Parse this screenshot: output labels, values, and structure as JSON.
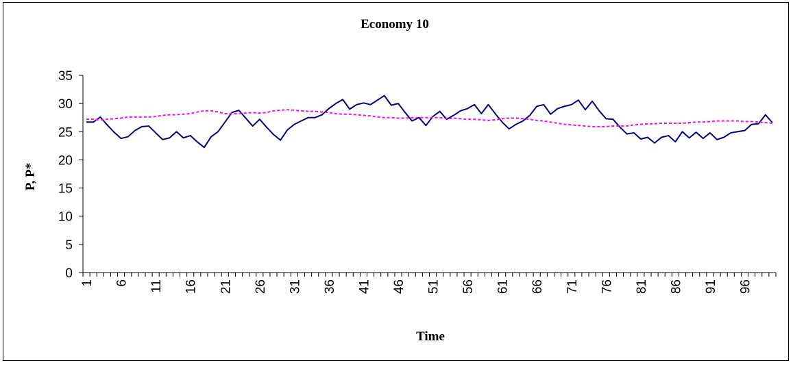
{
  "chart_data": {
    "type": "line",
    "title": "Economy 10",
    "xlabel": "Time",
    "ylabel": "P, P*",
    "ylim": [
      0,
      35
    ],
    "yticks": [
      0,
      5,
      10,
      15,
      20,
      25,
      30,
      35
    ],
    "xticks": [
      "1",
      "6",
      "11",
      "16",
      "21",
      "26",
      "31",
      "36",
      "41",
      "46",
      "51",
      "56",
      "61",
      "66",
      "71",
      "76",
      "81",
      "86",
      "91",
      "96"
    ],
    "x": [
      1,
      2,
      3,
      4,
      5,
      6,
      7,
      8,
      9,
      10,
      11,
      12,
      13,
      14,
      15,
      16,
      17,
      18,
      19,
      20,
      21,
      22,
      23,
      24,
      25,
      26,
      27,
      28,
      29,
      30,
      31,
      32,
      33,
      34,
      35,
      36,
      37,
      38,
      39,
      40,
      41,
      42,
      43,
      44,
      45,
      46,
      47,
      48,
      49,
      50,
      51,
      52,
      53,
      54,
      55,
      56,
      57,
      58,
      59,
      60,
      61,
      62,
      63,
      64,
      65,
      66,
      67,
      68,
      69,
      70,
      71,
      72,
      73,
      74,
      75,
      76,
      77,
      78,
      79,
      80,
      81,
      82,
      83,
      84,
      85,
      86,
      87,
      88,
      89,
      90,
      91,
      92,
      93,
      94,
      95,
      96,
      97,
      98,
      99,
      100
    ],
    "grid": false,
    "legend": "none",
    "series": [
      {
        "color": "#000080",
        "style": "solid",
        "values": [
          26.7,
          26.7,
          27.6,
          26.2,
          24.9,
          23.8,
          24.1,
          25.2,
          25.9,
          26.0,
          24.8,
          23.6,
          23.9,
          25.0,
          23.9,
          24.3,
          23.2,
          22.2,
          24.1,
          25.0,
          26.7,
          28.4,
          28.8,
          27.4,
          26.0,
          27.2,
          25.8,
          24.5,
          23.5,
          25.3,
          26.3,
          26.9,
          27.5,
          27.5,
          28.0,
          29.1,
          30.0,
          30.7,
          29.0,
          29.8,
          30.1,
          29.8,
          30.6,
          31.4,
          29.7,
          30.0,
          28.4,
          26.9,
          27.5,
          26.1,
          27.7,
          28.6,
          27.2,
          27.9,
          28.7,
          29.1,
          29.8,
          28.2,
          29.8,
          28.2,
          26.7,
          25.5,
          26.3,
          26.9,
          27.9,
          29.5,
          29.8,
          28.1,
          29.1,
          29.5,
          29.8,
          30.6,
          28.9,
          30.4,
          28.7,
          27.3,
          27.2,
          25.8,
          24.6,
          24.8,
          23.7,
          24.0,
          23.0,
          24.0,
          24.3,
          23.2,
          25.0,
          23.9,
          24.9,
          23.8,
          24.8,
          23.6,
          24.0,
          24.8,
          25.0,
          25.2,
          26.3,
          26.4,
          28.0,
          26.6
        ]
      },
      {
        "color": "#ff00ff",
        "style": "dashed",
        "values": [
          27.2,
          27.2,
          27.1,
          27.2,
          27.3,
          27.4,
          27.6,
          27.6,
          27.6,
          27.6,
          27.7,
          27.9,
          28.0,
          28.0,
          28.1,
          28.2,
          28.5,
          28.7,
          28.7,
          28.5,
          28.2,
          28.2,
          28.2,
          28.3,
          28.4,
          28.3,
          28.4,
          28.7,
          28.8,
          28.9,
          28.8,
          28.7,
          28.6,
          28.6,
          28.5,
          28.4,
          28.2,
          28.1,
          28.1,
          28.0,
          27.9,
          27.8,
          27.6,
          27.5,
          27.5,
          27.4,
          27.4,
          27.5,
          27.5,
          27.5,
          27.5,
          27.5,
          27.3,
          27.4,
          27.3,
          27.2,
          27.2,
          27.1,
          27.0,
          27.1,
          27.3,
          27.4,
          27.4,
          27.3,
          27.2,
          27.0,
          26.9,
          26.7,
          26.5,
          26.3,
          26.2,
          26.1,
          26.0,
          25.9,
          25.9,
          25.9,
          26.0,
          26.0,
          26.0,
          26.2,
          26.3,
          26.4,
          26.4,
          26.5,
          26.5,
          26.5,
          26.5,
          26.6,
          26.7,
          26.7,
          26.8,
          26.9,
          26.9,
          26.9,
          26.9,
          26.8,
          26.8,
          26.7,
          26.6,
          26.5
        ]
      }
    ]
  }
}
